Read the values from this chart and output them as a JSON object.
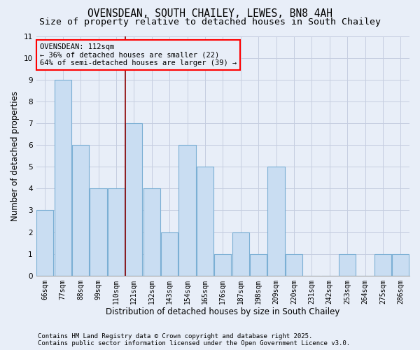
{
  "title": "OVENSDEAN, SOUTH CHAILEY, LEWES, BN8 4AH",
  "subtitle": "Size of property relative to detached houses in South Chailey",
  "xlabel": "Distribution of detached houses by size in South Chailey",
  "ylabel": "Number of detached properties",
  "categories": [
    "66sqm",
    "77sqm",
    "88sqm",
    "99sqm",
    "110sqm",
    "121sqm",
    "132sqm",
    "143sqm",
    "154sqm",
    "165sqm",
    "176sqm",
    "187sqm",
    "198sqm",
    "209sqm",
    "220sqm",
    "231sqm",
    "242sqm",
    "253sqm",
    "264sqm",
    "275sqm",
    "286sqm"
  ],
  "values": [
    3,
    9,
    6,
    4,
    4,
    7,
    4,
    2,
    6,
    5,
    1,
    2,
    1,
    5,
    1,
    0,
    0,
    1,
    0,
    1,
    1
  ],
  "bar_color": "#c9ddf2",
  "bar_edge_color": "#7bafd4",
  "ylim": [
    0,
    11
  ],
  "yticks": [
    0,
    1,
    2,
    3,
    4,
    5,
    6,
    7,
    8,
    9,
    10,
    11
  ],
  "red_line_x": 4.5,
  "annotation_title": "OVENSDEAN: 112sqm",
  "annotation_line2": "← 36% of detached houses are smaller (22)",
  "annotation_line3": "64% of semi-detached houses are larger (39) →",
  "footer_line1": "Contains HM Land Registry data © Crown copyright and database right 2025.",
  "footer_line2": "Contains public sector information licensed under the Open Government Licence v3.0.",
  "background_color": "#e8eef8",
  "grid_color": "#c5cde0",
  "title_fontsize": 10.5,
  "subtitle_fontsize": 9.5,
  "xlabel_fontsize": 8.5,
  "ylabel_fontsize": 8.5,
  "tick_fontsize": 7,
  "footer_fontsize": 6.5,
  "annotation_fontsize": 7.5
}
